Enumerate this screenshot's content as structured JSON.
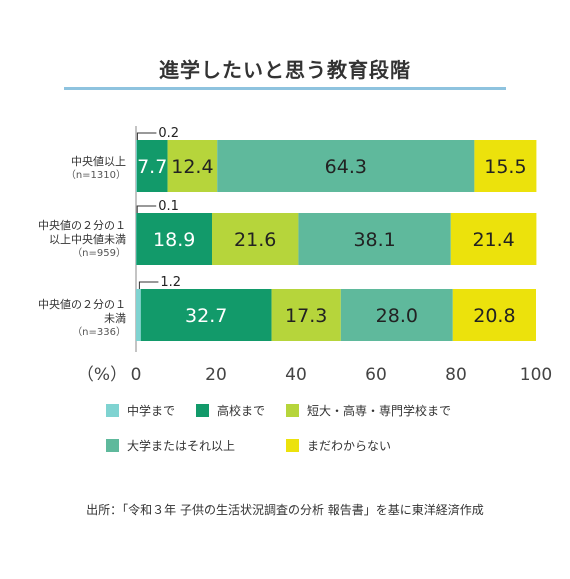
{
  "title": "進学したいと思う教育段階",
  "source": "出所：「令和３年 子供の生活状況調査の分析 報告書」を基に東洋経済作成",
  "colors": {
    "中学まで": "#7fd3d1",
    "高校まで": "#129a6a",
    "短大・高専・専門学校まで": "#b6d53b",
    "大学またはそれ以上": "#5fb99c",
    "まだわからない": "#ece20c"
  },
  "chart_data": {
    "type": "bar",
    "orientation": "horizontal",
    "stacked": true,
    "categories": [
      {
        "label_lines": [
          "中央値以上"
        ],
        "n": "（n=1310）"
      },
      {
        "label_lines": [
          "中央値の２分の１",
          "以上中央値未満"
        ],
        "n": "（n=959）"
      },
      {
        "label_lines": [
          "中央値の２分の１",
          "未満"
        ],
        "n": "（n=336）"
      }
    ],
    "series": [
      {
        "name": "中学まで",
        "values": [
          0.2,
          0.1,
          1.2
        ]
      },
      {
        "name": "高校まで",
        "values": [
          7.7,
          18.9,
          32.7
        ]
      },
      {
        "name": "短大・高専・専門学校まで",
        "values": [
          12.4,
          21.6,
          17.3
        ]
      },
      {
        "name": "大学またはそれ以上",
        "values": [
          64.3,
          38.1,
          28.0
        ]
      },
      {
        "name": "まだわからない",
        "values": [
          15.5,
          21.4,
          20.8
        ]
      }
    ],
    "value_labels": [
      [
        "0.2",
        "7.7",
        "12.4",
        "64.3",
        "15.5"
      ],
      [
        "0.1",
        "18.9",
        "21.6",
        "38.1",
        "21.4"
      ],
      [
        "1.2",
        "32.7",
        "17.3",
        "28.0",
        "20.8"
      ]
    ],
    "xlim": [
      0,
      100
    ],
    "xticks": [
      0,
      20,
      40,
      60,
      80,
      100
    ],
    "xunit": "（%）",
    "grid": false,
    "legend_position": "bottom"
  }
}
